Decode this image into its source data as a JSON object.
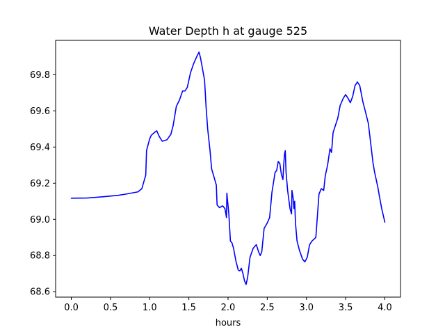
{
  "chart_data": {
    "type": "line",
    "title": "Water Depth h at gauge 525",
    "xlabel": "hours",
    "ylabel": "",
    "xlim": [
      -0.2,
      4.2
    ],
    "ylim": [
      68.57,
      69.99
    ],
    "grid": false,
    "x_ticks": [
      0.0,
      0.5,
      1.0,
      1.5,
      2.0,
      2.5,
      3.0,
      3.5,
      4.0
    ],
    "x_tick_labels": [
      "0.0",
      "0.5",
      "1.0",
      "1.5",
      "2.0",
      "2.5",
      "3.0",
      "3.5",
      "4.0"
    ],
    "y_ticks": [
      68.6,
      68.8,
      69.0,
      69.2,
      69.4,
      69.6,
      69.8
    ],
    "y_tick_labels": [
      "68.6",
      "68.8",
      "69.0",
      "69.2",
      "69.4",
      "69.6",
      "69.8"
    ],
    "series": [
      {
        "color": "#0000ff",
        "points": [
          [
            0.0,
            69.117
          ],
          [
            0.2,
            69.118
          ],
          [
            0.4,
            69.125
          ],
          [
            0.6,
            69.133
          ],
          [
            0.7,
            69.14
          ],
          [
            0.85,
            69.152
          ],
          [
            0.9,
            69.17
          ],
          [
            0.95,
            69.245
          ],
          [
            0.96,
            69.38
          ],
          [
            0.99,
            69.43
          ],
          [
            1.0,
            69.445
          ],
          [
            1.02,
            69.465
          ],
          [
            1.06,
            69.48
          ],
          [
            1.09,
            69.49
          ],
          [
            1.12,
            69.46
          ],
          [
            1.16,
            69.432
          ],
          [
            1.22,
            69.44
          ],
          [
            1.27,
            69.47
          ],
          [
            1.3,
            69.52
          ],
          [
            1.34,
            69.625
          ],
          [
            1.38,
            69.66
          ],
          [
            1.42,
            69.71
          ],
          [
            1.45,
            69.71
          ],
          [
            1.48,
            69.73
          ],
          [
            1.52,
            69.81
          ],
          [
            1.56,
            69.86
          ],
          [
            1.6,
            69.9
          ],
          [
            1.63,
            69.925
          ],
          [
            1.65,
            69.89
          ],
          [
            1.7,
            69.77
          ],
          [
            1.72,
            69.62
          ],
          [
            1.74,
            69.5
          ],
          [
            1.77,
            69.38
          ],
          [
            1.79,
            69.28
          ],
          [
            1.83,
            69.22
          ],
          [
            1.85,
            69.19
          ],
          [
            1.86,
            69.08
          ],
          [
            1.89,
            69.065
          ],
          [
            1.93,
            69.075
          ],
          [
            1.96,
            69.06
          ],
          [
            1.98,
            69.01
          ],
          [
            1.985,
            69.145
          ],
          [
            1.99,
            69.12
          ],
          [
            2.01,
            69.03
          ],
          [
            2.03,
            68.88
          ],
          [
            2.05,
            68.87
          ],
          [
            2.07,
            68.84
          ],
          [
            2.1,
            68.77
          ],
          [
            2.13,
            68.72
          ],
          [
            2.15,
            68.715
          ],
          [
            2.17,
            68.73
          ],
          [
            2.19,
            68.7
          ],
          [
            2.21,
            68.66
          ],
          [
            2.23,
            68.64
          ],
          [
            2.25,
            68.68
          ],
          [
            2.28,
            68.79
          ],
          [
            2.32,
            68.84
          ],
          [
            2.36,
            68.86
          ],
          [
            2.39,
            68.82
          ],
          [
            2.41,
            68.8
          ],
          [
            2.43,
            68.82
          ],
          [
            2.46,
            68.95
          ],
          [
            2.5,
            68.98
          ],
          [
            2.53,
            69.01
          ],
          [
            2.56,
            69.15
          ],
          [
            2.6,
            69.26
          ],
          [
            2.62,
            69.27
          ],
          [
            2.64,
            69.32
          ],
          [
            2.66,
            69.31
          ],
          [
            2.68,
            69.25
          ],
          [
            2.7,
            69.22
          ],
          [
            2.71,
            69.3
          ],
          [
            2.72,
            69.36
          ],
          [
            2.73,
            69.38
          ],
          [
            2.74,
            69.26
          ],
          [
            2.76,
            69.16
          ],
          [
            2.79,
            69.06
          ],
          [
            2.81,
            69.03
          ],
          [
            2.815,
            69.16
          ],
          [
            2.83,
            69.12
          ],
          [
            2.84,
            69.06
          ],
          [
            2.85,
            69.1
          ],
          [
            2.86,
            68.98
          ],
          [
            2.88,
            68.88
          ],
          [
            2.91,
            68.83
          ],
          [
            2.95,
            68.78
          ],
          [
            2.98,
            68.765
          ],
          [
            3.01,
            68.79
          ],
          [
            3.04,
            68.86
          ],
          [
            3.07,
            68.88
          ],
          [
            3.12,
            68.9
          ],
          [
            3.16,
            69.14
          ],
          [
            3.19,
            69.17
          ],
          [
            3.22,
            69.16
          ],
          [
            3.24,
            69.24
          ],
          [
            3.27,
            69.3
          ],
          [
            3.3,
            69.39
          ],
          [
            3.32,
            69.37
          ],
          [
            3.34,
            69.48
          ],
          [
            3.37,
            69.52
          ],
          [
            3.4,
            69.56
          ],
          [
            3.43,
            69.63
          ],
          [
            3.47,
            69.67
          ],
          [
            3.5,
            69.69
          ],
          [
            3.53,
            69.67
          ],
          [
            3.56,
            69.645
          ],
          [
            3.59,
            69.68
          ],
          [
            3.62,
            69.74
          ],
          [
            3.65,
            69.76
          ],
          [
            3.68,
            69.74
          ],
          [
            3.72,
            69.65
          ],
          [
            3.75,
            69.6
          ],
          [
            3.79,
            69.53
          ],
          [
            3.82,
            69.42
          ],
          [
            3.85,
            69.31
          ],
          [
            3.87,
            69.26
          ],
          [
            3.9,
            69.2
          ],
          [
            3.91,
            69.18
          ],
          [
            3.93,
            69.13
          ],
          [
            3.96,
            69.06
          ],
          [
            4.0,
            68.985
          ]
        ]
      }
    ]
  }
}
